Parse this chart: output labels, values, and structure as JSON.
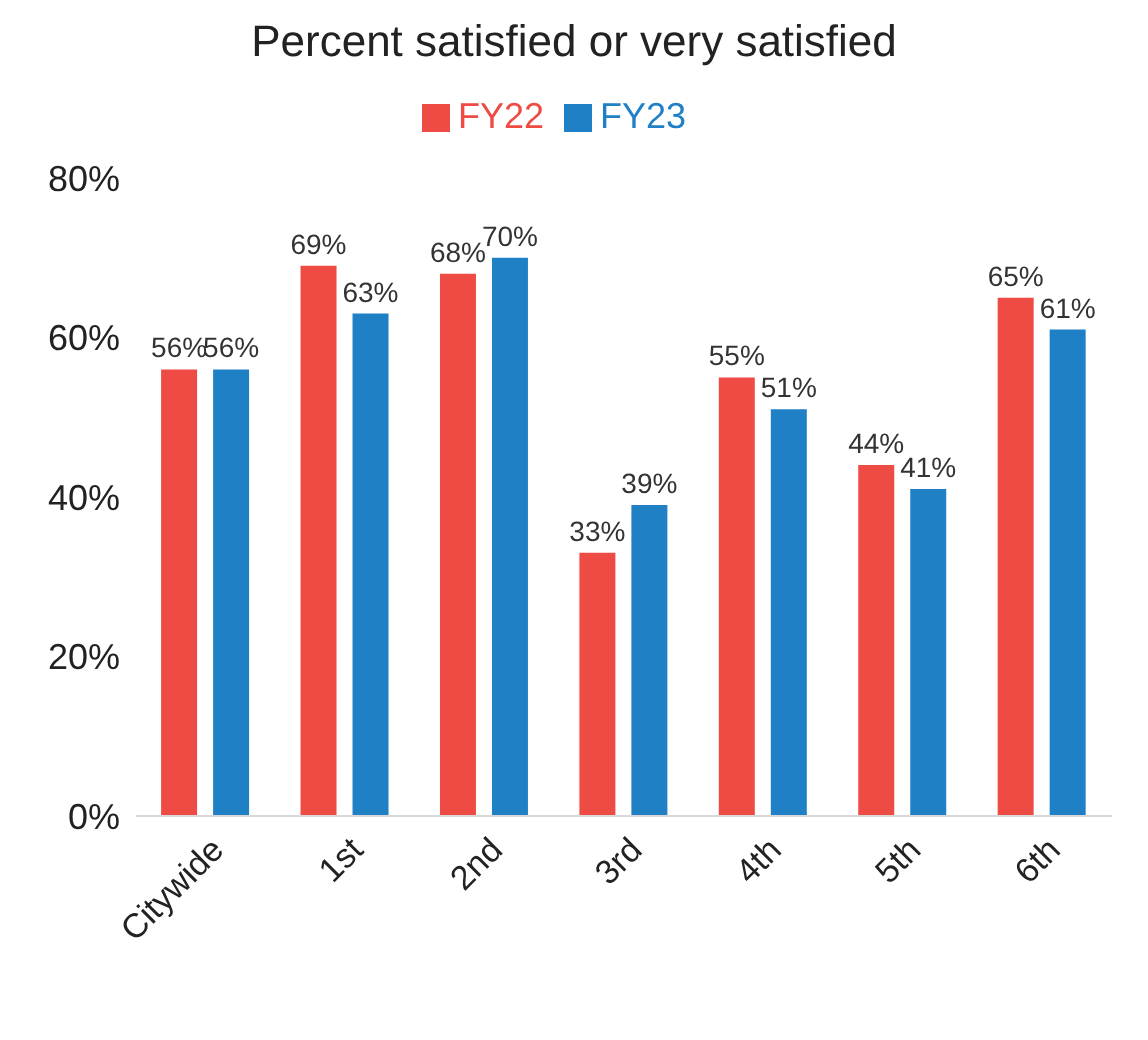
{
  "chart_data": {
    "type": "bar",
    "title": "Percent satisfied or very satisfied",
    "categories": [
      "Citywide",
      "1st",
      "2nd",
      "3rd",
      "4th",
      "5th",
      "6th"
    ],
    "series": [
      {
        "name": "FY22",
        "color": "#ef4b45",
        "values": [
          56,
          69,
          68,
          33,
          55,
          44,
          65
        ],
        "value_labels": [
          "56%",
          "69%",
          "68%",
          "33%",
          "55%",
          "44%",
          "65%"
        ]
      },
      {
        "name": "FY23",
        "color": "#1f80c6",
        "values": [
          56,
          63,
          70,
          39,
          51,
          41,
          61
        ],
        "value_labels": [
          "56%",
          "63%",
          "70%",
          "39%",
          "51%",
          "41%",
          "61%"
        ]
      }
    ],
    "ylim": [
      0,
      80
    ],
    "yticks": [
      {
        "value": 0,
        "label": "0%"
      },
      {
        "value": 20,
        "label": "20%"
      },
      {
        "value": 40,
        "label": "40%"
      },
      {
        "value": 60,
        "label": "60%"
      },
      {
        "value": 80,
        "label": "80%"
      }
    ],
    "grid": false,
    "legend": "top"
  }
}
